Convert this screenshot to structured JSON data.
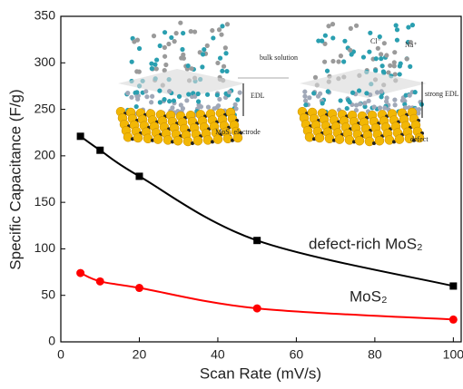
{
  "chart_data": {
    "type": "line",
    "x_label": "Scan Rate (mV/s)",
    "y_label": "Specific Capacitance (F/g)",
    "x": [
      5,
      10,
      20,
      50,
      100
    ],
    "series": [
      {
        "name": "defect-rich MoS₂",
        "color": "#000000",
        "marker": "square",
        "values": [
          221,
          206,
          178,
          109,
          60
        ]
      },
      {
        "name": "MoS₂",
        "color": "#ff0000",
        "marker": "circle",
        "values": [
          74,
          65,
          58,
          36,
          24
        ]
      }
    ],
    "xlim": [
      0,
      102
    ],
    "ylim": [
      0,
      350
    ],
    "xticks": [
      0,
      20,
      40,
      60,
      80,
      100
    ],
    "yticks": [
      0,
      50,
      100,
      150,
      200,
      250,
      300,
      350
    ],
    "annotations": [
      "bulk solution",
      "EDL",
      "MoS₂ electrode",
      "strong EDL",
      "defect",
      "Cl⁻",
      "Na⁺"
    ]
  }
}
